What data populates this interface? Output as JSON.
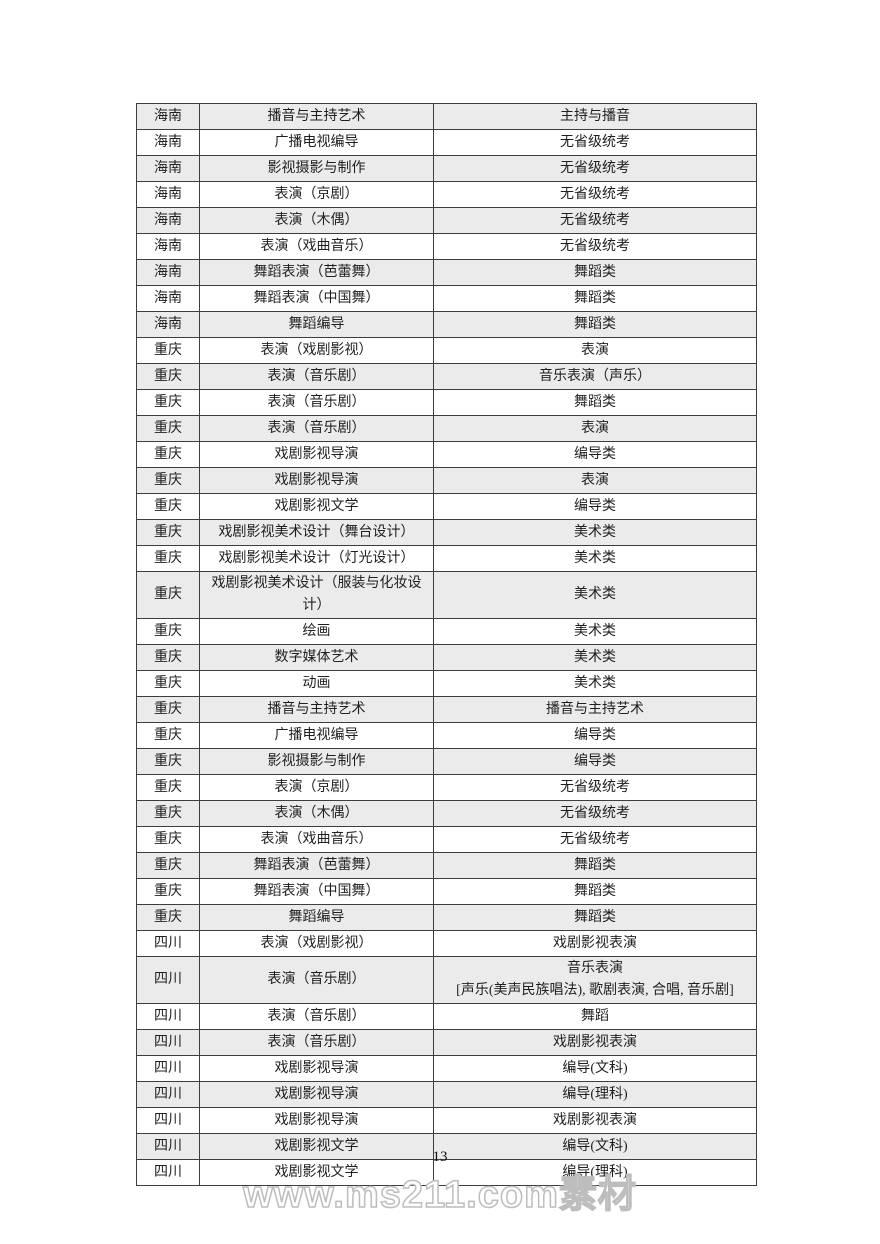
{
  "page": {
    "number": "13",
    "watermark": "www.ms211.com素材"
  },
  "colors": {
    "row_shade": "#ebebeb",
    "border": "#3d3d3d",
    "text": "#1f1f1f",
    "watermark_outline": "#bdbdbd"
  },
  "table": {
    "columns": [
      "province",
      "major",
      "category"
    ],
    "rows": [
      {
        "province": "海南",
        "major": "播音与主持艺术",
        "category": "主持与播音"
      },
      {
        "province": "海南",
        "major": "广播电视编导",
        "category": "无省级统考"
      },
      {
        "province": "海南",
        "major": "影视摄影与制作",
        "category": "无省级统考"
      },
      {
        "province": "海南",
        "major": "表演（京剧）",
        "category": "无省级统考"
      },
      {
        "province": "海南",
        "major": "表演（木偶）",
        "category": "无省级统考"
      },
      {
        "province": "海南",
        "major": "表演（戏曲音乐）",
        "category": "无省级统考"
      },
      {
        "province": "海南",
        "major": "舞蹈表演（芭蕾舞）",
        "category": "舞蹈类"
      },
      {
        "province": "海南",
        "major": "舞蹈表演（中国舞）",
        "category": "舞蹈类"
      },
      {
        "province": "海南",
        "major": "舞蹈编导",
        "category": "舞蹈类"
      },
      {
        "province": "重庆",
        "major": "表演（戏剧影视）",
        "category": "表演"
      },
      {
        "province": "重庆",
        "major": "表演（音乐剧）",
        "category": "音乐表演（声乐）"
      },
      {
        "province": "重庆",
        "major": "表演（音乐剧）",
        "category": "舞蹈类"
      },
      {
        "province": "重庆",
        "major": "表演（音乐剧）",
        "category": "表演"
      },
      {
        "province": "重庆",
        "major": "戏剧影视导演",
        "category": "编导类"
      },
      {
        "province": "重庆",
        "major": "戏剧影视导演",
        "category": "表演"
      },
      {
        "province": "重庆",
        "major": "戏剧影视文学",
        "category": "编导类"
      },
      {
        "province": "重庆",
        "major": "戏剧影视美术设计（舞台设计）",
        "category": "美术类"
      },
      {
        "province": "重庆",
        "major": "戏剧影视美术设计（灯光设计）",
        "category": "美术类"
      },
      {
        "province": "重庆",
        "major": "戏剧影视美术设计（服装与化妆设计）",
        "category": "美术类"
      },
      {
        "province": "重庆",
        "major": "绘画",
        "category": "美术类"
      },
      {
        "province": "重庆",
        "major": "数字媒体艺术",
        "category": "美术类"
      },
      {
        "province": "重庆",
        "major": "动画",
        "category": "美术类"
      },
      {
        "province": "重庆",
        "major": "播音与主持艺术",
        "category": "播音与主持艺术"
      },
      {
        "province": "重庆",
        "major": "广播电视编导",
        "category": "编导类"
      },
      {
        "province": "重庆",
        "major": "影视摄影与制作",
        "category": "编导类"
      },
      {
        "province": "重庆",
        "major": "表演（京剧）",
        "category": "无省级统考"
      },
      {
        "province": "重庆",
        "major": "表演（木偶）",
        "category": "无省级统考"
      },
      {
        "province": "重庆",
        "major": "表演（戏曲音乐）",
        "category": "无省级统考"
      },
      {
        "province": "重庆",
        "major": "舞蹈表演（芭蕾舞）",
        "category": "舞蹈类"
      },
      {
        "province": "重庆",
        "major": "舞蹈表演（中国舞）",
        "category": "舞蹈类"
      },
      {
        "province": "重庆",
        "major": "舞蹈编导",
        "category": "舞蹈类"
      },
      {
        "province": "四川",
        "major": "表演（戏剧影视）",
        "category": "戏剧影视表演"
      },
      {
        "province": "四川",
        "major": "表演（音乐剧）",
        "category": "音乐表演\n[声乐(美声民族唱法), 歌剧表演, 合唱, 音乐剧]"
      },
      {
        "province": "四川",
        "major": "表演（音乐剧）",
        "category": "舞蹈"
      },
      {
        "province": "四川",
        "major": "表演（音乐剧）",
        "category": "戏剧影视表演"
      },
      {
        "province": "四川",
        "major": "戏剧影视导演",
        "category": "编导(文科)"
      },
      {
        "province": "四川",
        "major": "戏剧影视导演",
        "category": "编导(理科)"
      },
      {
        "province": "四川",
        "major": "戏剧影视导演",
        "category": "戏剧影视表演"
      },
      {
        "province": "四川",
        "major": "戏剧影视文学",
        "category": "编导(文科)"
      },
      {
        "province": "四川",
        "major": "戏剧影视文学",
        "category": "编导(理科)"
      }
    ]
  }
}
